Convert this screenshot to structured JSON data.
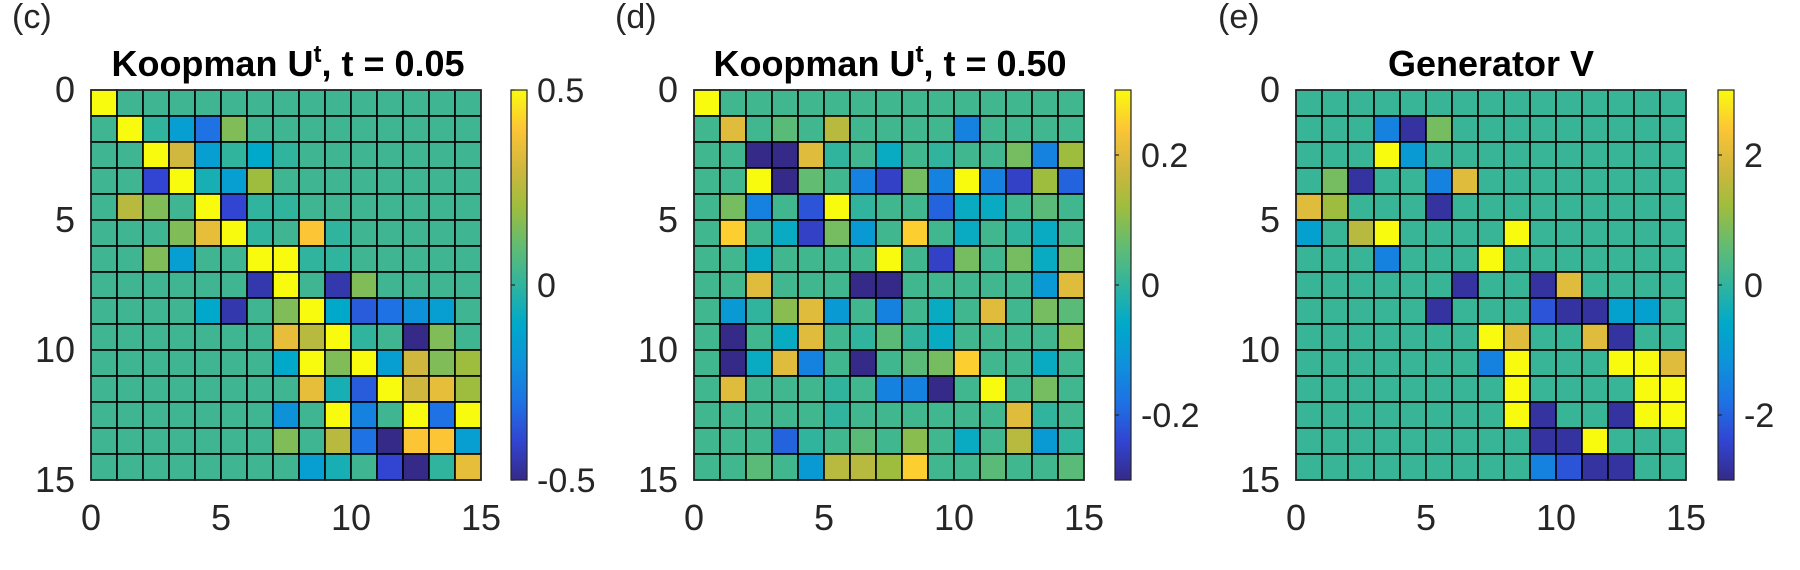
{
  "colormap": {
    "name": "parula",
    "stops": [
      "#352a87",
      "#3145d2",
      "#1e72e4",
      "#0d92da",
      "#00a9c9",
      "#30b49e",
      "#62bc72",
      "#9ebd3e",
      "#d0b73d",
      "#fcc536",
      "#f9fb0e"
    ]
  },
  "grid_line_color": "#000000",
  "chart_data": [
    {
      "type": "heatmap",
      "panel_label": "(c)",
      "title": "Koopman U",
      "title_superscript": "t",
      "title_suffix": ", t = 0.05",
      "x_ticks": [
        "0",
        "5",
        "10",
        "15"
      ],
      "y_ticks": [
        "0",
        "5",
        "10",
        "15"
      ],
      "xlim": [
        0,
        15
      ],
      "ylim": [
        0,
        15
      ],
      "clim": [
        -0.5,
        0.5
      ],
      "colorbar_ticks": [
        {
          "value": 0.5,
          "label": "0.5"
        },
        {
          "value": 0,
          "label": "0"
        },
        {
          "value": -0.5,
          "label": "-0.5"
        }
      ],
      "matrix": [
        [
          0.5,
          0.03,
          0.03,
          0.03,
          0.03,
          0.03,
          0.03,
          0.03,
          0.03,
          0.03,
          0.03,
          0.03,
          0.03,
          0.03,
          0.03
        ],
        [
          0.03,
          0.5,
          0.0,
          -0.15,
          -0.3,
          0.15,
          0.03,
          0.03,
          0.03,
          0.03,
          0.03,
          0.03,
          0.03,
          0.03,
          0.03
        ],
        [
          0.03,
          0.03,
          0.5,
          0.3,
          -0.15,
          0.0,
          -0.1,
          0.0,
          0.03,
          0.03,
          0.03,
          0.03,
          0.03,
          0.03,
          0.03
        ],
        [
          0.03,
          0.03,
          -0.4,
          0.5,
          -0.05,
          -0.15,
          0.2,
          0.03,
          0.03,
          0.03,
          0.03,
          0.03,
          0.03,
          0.03,
          0.03
        ],
        [
          0.03,
          0.25,
          0.15,
          0.03,
          0.5,
          -0.4,
          0.0,
          0.0,
          0.03,
          0.03,
          0.03,
          0.03,
          0.03,
          0.03,
          0.03
        ],
        [
          0.03,
          0.03,
          0.03,
          0.15,
          0.35,
          0.5,
          0.0,
          0.03,
          0.4,
          0.0,
          0.03,
          0.03,
          0.03,
          0.03,
          0.03
        ],
        [
          0.03,
          0.03,
          0.15,
          -0.15,
          0.03,
          0.03,
          0.5,
          0.5,
          0.0,
          0.0,
          0.03,
          0.03,
          0.03,
          0.03,
          0.03
        ],
        [
          0.03,
          0.03,
          0.03,
          0.03,
          0.03,
          0.03,
          -0.45,
          0.5,
          0.03,
          -0.45,
          0.15,
          0.03,
          0.03,
          0.03,
          0.03
        ],
        [
          0.03,
          0.03,
          0.03,
          0.03,
          -0.1,
          -0.45,
          0.03,
          0.15,
          0.5,
          -0.1,
          -0.35,
          -0.3,
          -0.2,
          -0.15,
          0.03
        ],
        [
          0.03,
          0.03,
          0.03,
          0.03,
          0.03,
          0.03,
          0.03,
          0.35,
          0.25,
          0.5,
          0.0,
          0.03,
          -0.5,
          0.15,
          0.03
        ],
        [
          0.03,
          0.03,
          0.03,
          0.03,
          0.03,
          0.03,
          0.03,
          -0.1,
          0.5,
          0.15,
          0.5,
          -0.15,
          0.3,
          0.15,
          0.2
        ],
        [
          0.03,
          0.03,
          0.03,
          0.03,
          0.03,
          0.03,
          0.03,
          0.03,
          0.35,
          -0.05,
          -0.35,
          0.5,
          0.3,
          0.35,
          0.2
        ],
        [
          0.03,
          0.03,
          0.03,
          0.03,
          0.03,
          0.03,
          0.03,
          -0.2,
          0.03,
          0.5,
          -0.25,
          0.03,
          0.5,
          -0.3,
          0.5
        ],
        [
          0.03,
          0.03,
          0.03,
          0.03,
          0.03,
          0.03,
          0.03,
          0.15,
          0.03,
          0.25,
          -0.3,
          -0.5,
          0.4,
          0.4,
          -0.15
        ],
        [
          0.03,
          0.03,
          0.03,
          0.03,
          0.03,
          0.03,
          0.03,
          0.03,
          -0.15,
          -0.05,
          0.03,
          -0.4,
          -0.5,
          0.0,
          0.35
        ]
      ]
    },
    {
      "type": "heatmap",
      "panel_label": "(d)",
      "title": "Koopman U",
      "title_superscript": "t",
      "title_suffix": ", t = 0.50",
      "x_ticks": [
        "0",
        "5",
        "10",
        "15"
      ],
      "y_ticks": [
        "0",
        "5",
        "10",
        "15"
      ],
      "xlim": [
        0,
        15
      ],
      "ylim": [
        0,
        15
      ],
      "clim": [
        -0.3,
        0.3
      ],
      "colorbar_ticks": [
        {
          "value": 0.2,
          "label": "0.2"
        },
        {
          "value": 0,
          "label": "0"
        },
        {
          "value": -0.2,
          "label": "-0.2"
        }
      ],
      "matrix": [
        [
          0.3,
          0.02,
          0.02,
          0.02,
          0.02,
          0.02,
          0.02,
          0.02,
          0.02,
          0.02,
          0.02,
          0.02,
          0.02,
          0.02,
          0.02
        ],
        [
          0.02,
          0.2,
          0.02,
          0.05,
          0.02,
          0.15,
          0.02,
          0.02,
          0.02,
          0.02,
          -0.15,
          0.02,
          0.02,
          0.02,
          0.02
        ],
        [
          0.02,
          0.02,
          -0.3,
          -0.3,
          0.2,
          0.0,
          0.02,
          -0.05,
          0.02,
          0.0,
          0.02,
          0.02,
          0.08,
          -0.15,
          0.12
        ],
        [
          0.02,
          0.02,
          0.3,
          -0.3,
          0.06,
          0.02,
          -0.15,
          -0.25,
          0.08,
          -0.15,
          0.3,
          -0.15,
          -0.25,
          0.12,
          -0.2
        ],
        [
          0.02,
          0.08,
          -0.15,
          0.02,
          -0.22,
          0.3,
          0.0,
          0.02,
          0.02,
          -0.2,
          -0.05,
          -0.05,
          0.02,
          0.05,
          0.02
        ],
        [
          0.02,
          0.25,
          0.02,
          -0.05,
          -0.25,
          0.08,
          -0.1,
          0.02,
          0.25,
          0.02,
          -0.05,
          0.02,
          0.0,
          -0.05,
          0.02
        ],
        [
          0.02,
          0.02,
          -0.05,
          0.02,
          0.02,
          0.02,
          0.02,
          0.3,
          0.02,
          -0.25,
          0.08,
          0.02,
          0.08,
          -0.05,
          0.08
        ],
        [
          0.02,
          0.02,
          0.2,
          0.02,
          0.02,
          0.02,
          -0.3,
          -0.3,
          0.02,
          0.02,
          0.02,
          0.02,
          0.02,
          -0.1,
          0.2
        ],
        [
          0.02,
          -0.1,
          0.0,
          0.1,
          0.2,
          -0.1,
          0.02,
          -0.15,
          0.02,
          -0.05,
          0.02,
          0.2,
          0.02,
          0.08,
          0.05
        ],
        [
          0.02,
          -0.3,
          0.02,
          -0.05,
          0.2,
          0.02,
          0.0,
          0.05,
          0.0,
          -0.05,
          0.02,
          0.02,
          0.02,
          0.02,
          0.1
        ],
        [
          0.02,
          -0.3,
          -0.05,
          0.2,
          -0.15,
          0.02,
          -0.3,
          0.02,
          0.05,
          0.08,
          0.25,
          0.02,
          0.02,
          -0.05,
          0.02
        ],
        [
          0.02,
          0.2,
          0.02,
          0.02,
          0.02,
          0.0,
          0.02,
          -0.15,
          -0.15,
          -0.3,
          0.02,
          0.3,
          0.02,
          0.08,
          0.02
        ],
        [
          0.02,
          0.02,
          0.02,
          0.02,
          0.02,
          0.0,
          0.02,
          0.02,
          0.02,
          0.02,
          0.02,
          0.02,
          0.2,
          0.0,
          0.02
        ],
        [
          0.02,
          0.02,
          0.02,
          -0.2,
          0.0,
          0.02,
          0.05,
          0.02,
          0.1,
          0.02,
          -0.05,
          0.02,
          0.15,
          -0.1,
          0.0
        ],
        [
          0.02,
          0.02,
          0.05,
          0.02,
          -0.1,
          0.15,
          0.15,
          0.12,
          0.25,
          0.02,
          0.02,
          0.05,
          0.02,
          0.02,
          0.05
        ]
      ]
    },
    {
      "type": "heatmap",
      "panel_label": "(e)",
      "title": "Generator V",
      "title_superscript": "",
      "title_suffix": "",
      "x_ticks": [
        "0",
        "5",
        "10",
        "15"
      ],
      "y_ticks": [
        "0",
        "5",
        "10",
        "15"
      ],
      "xlim": [
        0,
        15
      ],
      "ylim": [
        0,
        15
      ],
      "clim": [
        -3,
        3
      ],
      "colorbar_ticks": [
        {
          "value": 2,
          "label": "2"
        },
        {
          "value": 0,
          "label": "0"
        },
        {
          "value": -2,
          "label": "-2"
        }
      ],
      "matrix": [
        [
          0.1,
          0.1,
          0.1,
          0.1,
          0.1,
          0.1,
          0.1,
          0.1,
          0.1,
          0.1,
          0.1,
          0.1,
          0.1,
          0.1,
          0.1
        ],
        [
          0.1,
          0.1,
          0.1,
          -1.5,
          -2.8,
          0.8,
          0.1,
          0.1,
          0.1,
          0.1,
          0.1,
          0.1,
          0.1,
          0.1,
          0.1
        ],
        [
          0.1,
          0.1,
          0.1,
          3.0,
          -1.0,
          0.1,
          0.1,
          0.1,
          0.1,
          0.1,
          0.1,
          0.1,
          0.1,
          0.1,
          0.1
        ],
        [
          0.1,
          0.8,
          -2.8,
          0.1,
          0.1,
          -1.5,
          2.0,
          0.1,
          0.1,
          0.1,
          0.1,
          0.1,
          0.1,
          0.1,
          0.1
        ],
        [
          2.0,
          1.2,
          0.1,
          0.1,
          0.1,
          -2.8,
          0.1,
          0.1,
          0.1,
          0.1,
          0.1,
          0.1,
          0.1,
          0.1,
          0.1
        ],
        [
          -0.8,
          0.1,
          1.5,
          3.0,
          0.1,
          0.1,
          0.1,
          0.1,
          3.0,
          0.1,
          0.1,
          0.1,
          0.1,
          0.1,
          0.1
        ],
        [
          0.1,
          0.1,
          0.1,
          -1.5,
          0.1,
          0.1,
          0.1,
          3.0,
          0.1,
          0.1,
          0.1,
          0.1,
          0.1,
          0.1,
          0.1
        ],
        [
          0.1,
          0.1,
          0.1,
          0.1,
          0.1,
          0.1,
          -2.8,
          0.1,
          0.1,
          -2.8,
          2.0,
          0.1,
          0.1,
          0.1,
          0.1
        ],
        [
          0.1,
          0.1,
          0.1,
          0.1,
          0.1,
          -2.8,
          0.1,
          0.1,
          0.1,
          -2.2,
          -2.8,
          -2.8,
          -0.8,
          -0.8,
          0.1
        ],
        [
          0.1,
          0.1,
          0.1,
          0.1,
          0.1,
          0.1,
          0.1,
          3.0,
          2.0,
          0.1,
          0.1,
          2.0,
          -2.8,
          0.1,
          0.1
        ],
        [
          0.1,
          0.1,
          0.1,
          0.1,
          0.1,
          0.1,
          0.1,
          -1.5,
          3.0,
          0.1,
          0.1,
          0.1,
          3.0,
          3.0,
          2.0
        ],
        [
          0.1,
          0.1,
          0.1,
          0.1,
          0.1,
          0.1,
          0.1,
          0.1,
          3.0,
          0.1,
          0.1,
          0.1,
          0.1,
          3.0,
          3.0
        ],
        [
          0.1,
          0.1,
          0.1,
          0.1,
          0.1,
          0.1,
          0.1,
          0.1,
          3.0,
          -2.8,
          0.1,
          0.1,
          -2.8,
          3.0,
          3.0
        ],
        [
          0.1,
          0.1,
          0.1,
          0.1,
          0.1,
          0.1,
          0.1,
          0.1,
          0.1,
          -2.8,
          -2.8,
          3.0,
          0.1,
          0.1,
          0.1
        ],
        [
          0.1,
          0.1,
          0.1,
          0.1,
          0.1,
          0.1,
          0.1,
          0.1,
          0.1,
          -1.5,
          -2.2,
          -2.8,
          -2.8,
          0.1,
          0.1
        ]
      ]
    }
  ]
}
